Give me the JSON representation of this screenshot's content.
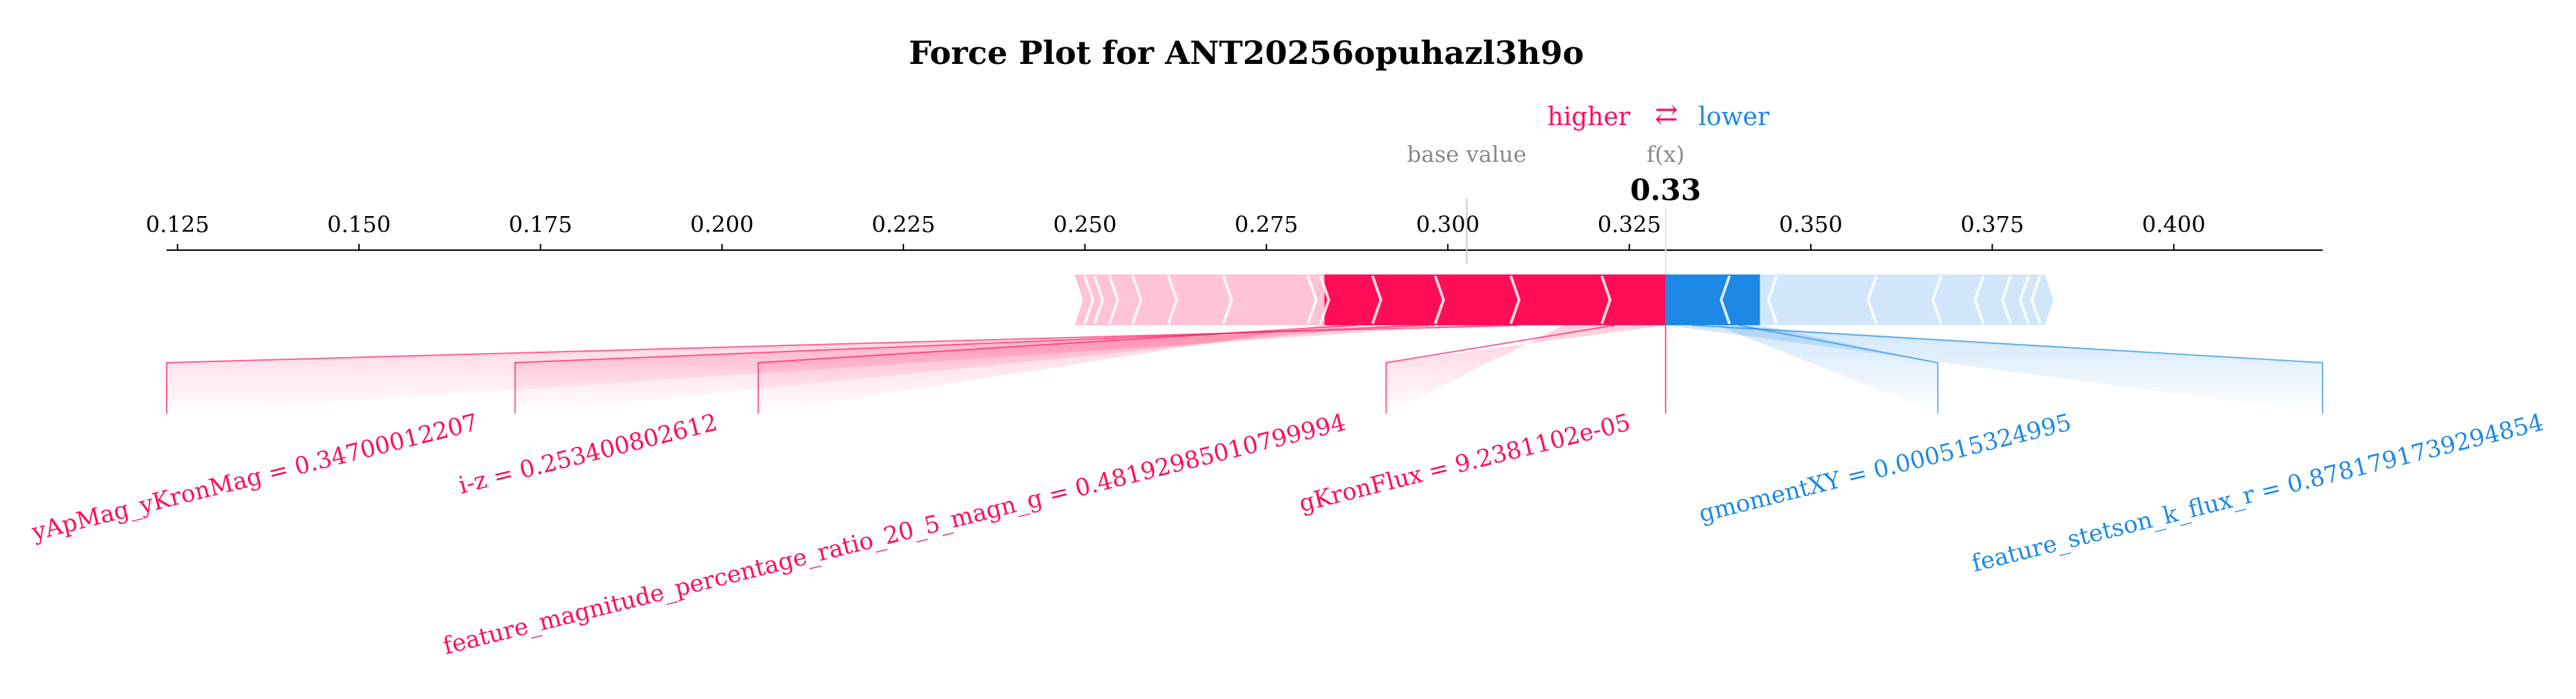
{
  "chart_data": {
    "type": "force_plot",
    "title": "Force Plot for ANT20256opuhazl3h9o",
    "legend": {
      "higher_label": "higher",
      "lower_label": "lower",
      "arrow_glyph": "⇄"
    },
    "base_value_label": "base value",
    "fx_label": "f(x)",
    "output_value": 0.33,
    "output_value_text": "0.33",
    "base_value": 0.3026,
    "xlim": [
      0.1235,
      0.4205
    ],
    "ticks": [
      0.125,
      0.15,
      0.175,
      0.2,
      0.225,
      0.25,
      0.275,
      0.3,
      0.325,
      0.35,
      0.375,
      0.4
    ],
    "tick_labels": [
      "0.125",
      "0.150",
      "0.175",
      "0.200",
      "0.225",
      "0.250",
      "0.275",
      "0.300",
      "0.325",
      "0.350",
      "0.375",
      "0.400"
    ],
    "bar_extent": [
      0.2486,
      0.3834
    ],
    "positive_features": [
      {
        "label": "gKronFlux = 9.2381102e-05",
        "lo": 0.316,
        "hi": 0.3301
      },
      {
        "label": "yApMag_yKronMag = 0.34700012207",
        "lo": 0.303,
        "hi": 0.316
      },
      {
        "label": "i-z = 0.253400802612",
        "lo": 0.292,
        "hi": 0.303
      },
      {
        "label": "feature_magnitude_percentage_ratio_20_5_magn_g = 0.48192985010799994",
        "lo": 0.283,
        "hi": 0.292
      }
    ],
    "negative_features": [
      {
        "label": "feature_stetson_k_flux_r = 0.8781791739294854",
        "lo": 0.3301,
        "hi": 0.337
      },
      {
        "label": "gmomentXY = 0.000515324995",
        "lo": 0.337,
        "hi": 0.343
      }
    ],
    "colors": {
      "positive": "#ff0d57",
      "negative": "#1e88e5",
      "positive_light": "#ffc3d5",
      "negative_light": "#d1e6fa",
      "text_gray": "#888888",
      "axis": "#000000"
    }
  }
}
